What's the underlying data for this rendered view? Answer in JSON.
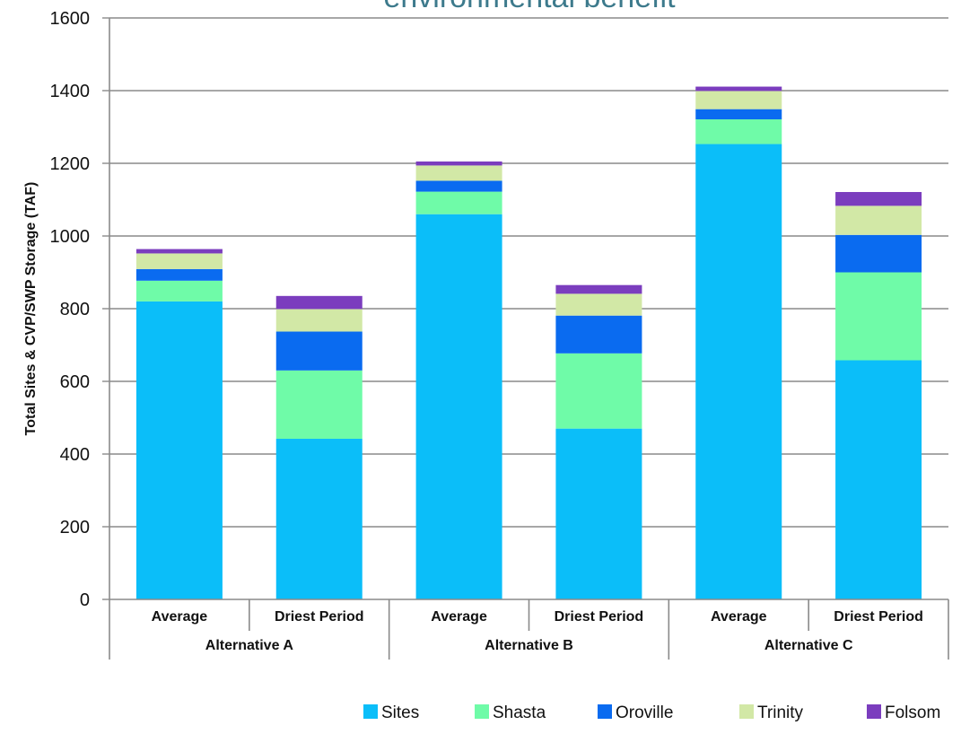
{
  "chart_data": {
    "type": "bar",
    "stacked": true,
    "title": "environmental benefit",
    "ylabel": "Total Sites & CVP/SWP Storage (TAF)",
    "xlabel": "",
    "ylim": [
      0,
      1600
    ],
    "yticks": [
      0,
      200,
      400,
      600,
      800,
      1000,
      1200,
      1400,
      1600
    ],
    "grid": true,
    "legend_position": "bottom-right",
    "categories": [
      "Average",
      "Driest Period",
      "Average",
      "Driest Period",
      "Average",
      "Driest Period"
    ],
    "groups": [
      {
        "label": "Alternative A",
        "span": 2
      },
      {
        "label": "Alternative B",
        "span": 2
      },
      {
        "label": "Alternative C",
        "span": 2
      }
    ],
    "series": [
      {
        "name": "Sites",
        "color": "#0BBEF9",
        "values": [
          820,
          442,
          1060,
          470,
          1253,
          658
        ]
      },
      {
        "name": "Shasta",
        "color": "#6FFBA8",
        "values": [
          57,
          188,
          62,
          207,
          68,
          242
        ]
      },
      {
        "name": "Oroville",
        "color": "#0A6BF0",
        "values": [
          32,
          107,
          30,
          104,
          28,
          103
        ]
      },
      {
        "name": "Trinity",
        "color": "#D2E8A6",
        "values": [
          43,
          62,
          42,
          60,
          50,
          80
        ]
      },
      {
        "name": "Folsom",
        "color": "#7B3DBE",
        "values": [
          12,
          36,
          11,
          24,
          12,
          38
        ]
      }
    ]
  },
  "colors": {
    "title": "#3D7A8C",
    "grid": "#8a8a8a",
    "axis": "#8a8a8a"
  }
}
